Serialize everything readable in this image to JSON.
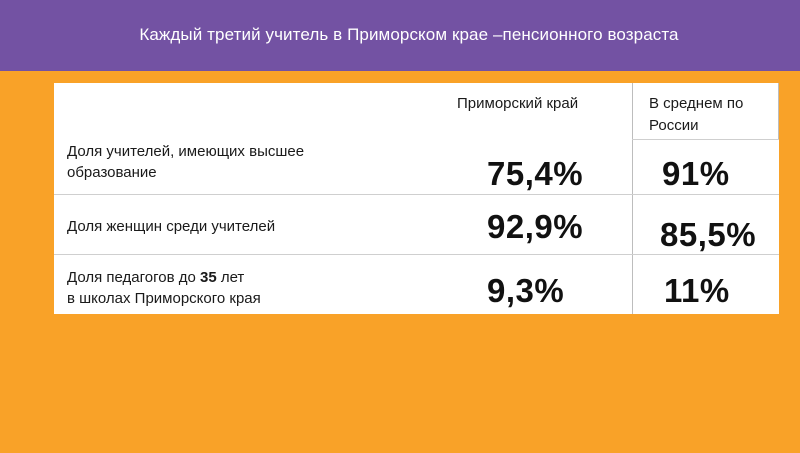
{
  "header": {
    "title": "Каждый третий учитель в Приморском крае –пенсионного возраста",
    "bg_color": "#7352a3"
  },
  "background_color": "#f9a228",
  "table": {
    "columns": [
      "Приморский край",
      "В среднем по России"
    ],
    "rows": [
      {
        "label_line1": "Доля учителей, имеющих  высшее",
        "label_line2": "образование",
        "primorsky": "75,4%",
        "russia": "91%"
      },
      {
        "label_line1": "Доля женщин среди учителей",
        "primorsky": "92,9%",
        "russia": "85,5%"
      },
      {
        "label_prefix": "Доля педагогов до ",
        "label_bold": "35",
        "label_suffix": " лет",
        "label_line2": "в школах Приморского края",
        "primorsky": "9,3%",
        "russia": "11%"
      }
    ]
  }
}
